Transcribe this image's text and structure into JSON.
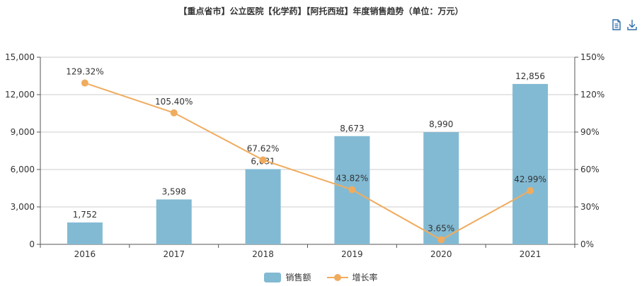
{
  "title": "【重点省市】公立医院【化学药】【阿托西班】年度销售趋势（单位：万元）",
  "toolbar": {
    "doc_icon": "document-icon",
    "download_icon": "download-icon"
  },
  "colors": {
    "bar": "#82BAD3",
    "line": "#F0AC5E",
    "axis": "#555555",
    "grid": "#CCCCCC"
  },
  "chart_data": {
    "type": "bar-line",
    "categories": [
      "2016",
      "2017",
      "2018",
      "2019",
      "2020",
      "2021"
    ],
    "series": [
      {
        "name": "销售额",
        "type": "bar",
        "axis": "left",
        "values": [
          1752,
          3598,
          6031,
          8673,
          8990,
          12856
        ],
        "labels": [
          "1,752",
          "3,598",
          "6,031",
          "8,673",
          "8,990",
          "12,856"
        ]
      },
      {
        "name": "增长率",
        "type": "line",
        "axis": "right",
        "values": [
          129.32,
          105.4,
          67.62,
          43.82,
          3.65,
          42.99
        ],
        "labels": [
          "129.32%",
          "105.40%",
          "67.62%",
          "43.82%",
          "3.65%",
          "42.99%"
        ]
      }
    ],
    "y_left": {
      "range": [
        0,
        15000
      ],
      "ticks": [
        0,
        3000,
        6000,
        9000,
        12000,
        15000
      ],
      "tick_labels": [
        "0",
        "3,000",
        "6,000",
        "9,000",
        "12,000",
        "15,000"
      ]
    },
    "y_right": {
      "range": [
        0,
        150
      ],
      "ticks": [
        0,
        30,
        60,
        90,
        120,
        150
      ],
      "tick_labels": [
        "0%",
        "30%",
        "60%",
        "90%",
        "120%",
        "150%"
      ]
    },
    "grid": true,
    "legend": "bottom-center"
  }
}
